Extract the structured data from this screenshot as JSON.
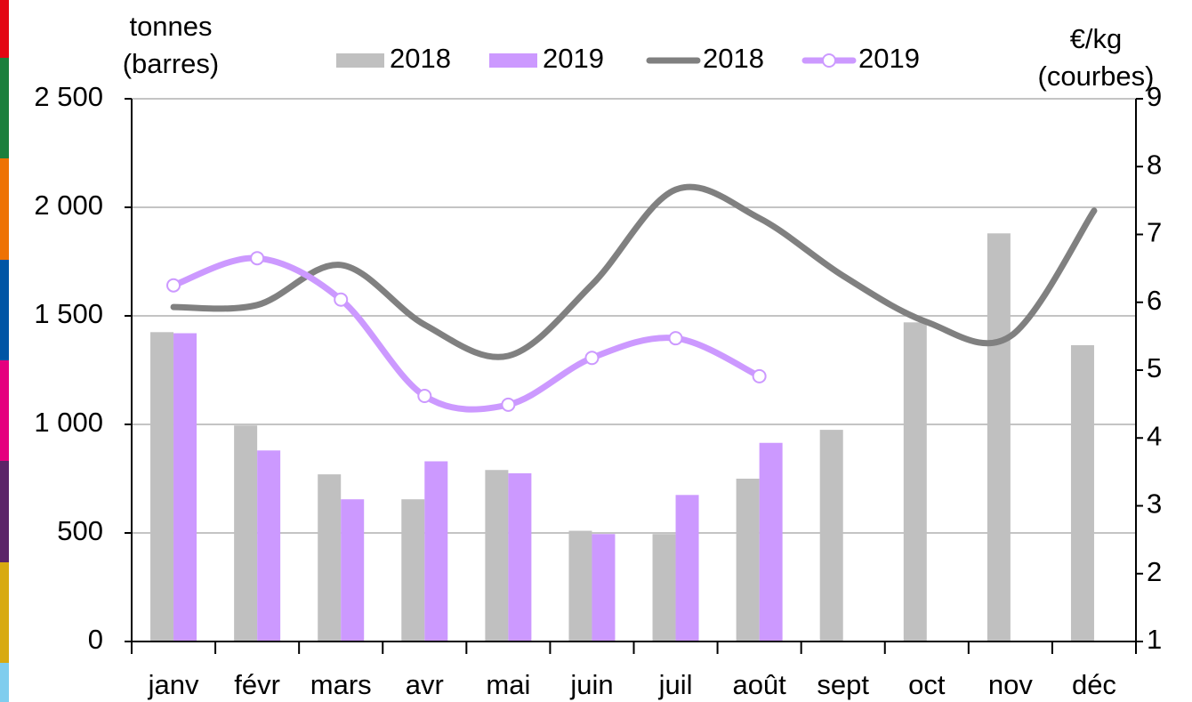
{
  "chart_data": {
    "type": "bar_line",
    "y_label": [
      "tonnes",
      "(barres)"
    ],
    "y2_label": [
      "€/kg",
      "(courbes)"
    ],
    "categories": [
      "janv",
      "févr",
      "mars",
      "avr",
      "mai",
      "juin",
      "juil",
      "août",
      "sept",
      "oct",
      "nov",
      "déc"
    ],
    "series": [
      {
        "name": "2018",
        "type": "bar",
        "color": "#c0c0c0",
        "values": [
          1425,
          995,
          770,
          655,
          790,
          510,
          495,
          750,
          975,
          1470,
          1880,
          1365
        ]
      },
      {
        "name": "2019",
        "type": "bar",
        "color": "#cc99ff",
        "values": [
          1420,
          880,
          655,
          830,
          775,
          495,
          675,
          915,
          null,
          null,
          null,
          null
        ]
      },
      {
        "name": "2018",
        "type": "line",
        "axis": "y2",
        "color": "#808080",
        "values": [
          5.93,
          5.96,
          6.55,
          5.67,
          5.21,
          6.26,
          7.66,
          7.24,
          6.39,
          5.71,
          5.5,
          7.35
        ]
      },
      {
        "name": "2019",
        "type": "line",
        "axis": "y2",
        "color": "#cc99ff",
        "markers": true,
        "values": [
          6.25,
          6.65,
          6.04,
          4.62,
          4.49,
          5.18,
          5.47,
          4.91,
          null,
          null,
          null,
          null
        ]
      }
    ],
    "ylim": [
      0,
      2500
    ],
    "yticks": [
      0,
      500,
      {
        "value": 1000,
        "label": "1 000"
      },
      {
        "value": 1500,
        "label": "1 500"
      },
      {
        "value": 2000,
        "label": "2 000"
      },
      {
        "value": 2500,
        "label": "2 500"
      }
    ],
    "y2lim": [
      1,
      9
    ],
    "y2ticks": [
      1,
      2,
      3,
      4,
      5,
      6,
      7,
      8,
      9
    ],
    "grid": true
  }
}
